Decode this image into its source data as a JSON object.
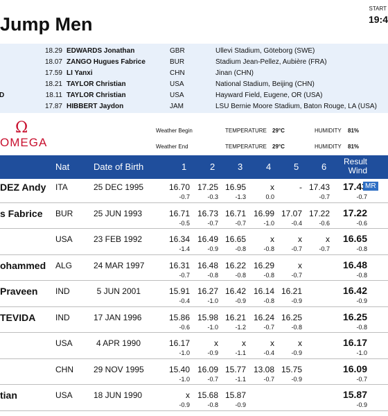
{
  "header": {
    "title": "Jump Men",
    "start_label": "START",
    "start_time": "19:4"
  },
  "records": [
    {
      "code": "",
      "mark": "18.29",
      "name": "EDWARDS Jonathan",
      "nat": "GBR",
      "venue": "Ullevi Stadium, Göteborg (SWE)"
    },
    {
      "code": "",
      "mark": "18.07",
      "name": "ZANGO Hugues Fabrice",
      "nat": "BUR",
      "venue": "Stadium Jean-Pellez, Aubière (FRA)"
    },
    {
      "code": "",
      "mark": "17.59",
      "name": "LI Yanxi",
      "nat": "CHN",
      "venue": "Jinan (CHN)"
    },
    {
      "code": "",
      "mark": "18.21",
      "name": "TAYLOR Christian",
      "nat": "USA",
      "venue": "National Stadium, Beijing (CHN)"
    },
    {
      "code": "D",
      "mark": "18.11",
      "name": "TAYLOR Christian",
      "nat": "USA",
      "venue": "Hayward Field, Eugene, OR (USA)"
    },
    {
      "code": "",
      "mark": "17.87",
      "name": "HIBBERT Jaydon",
      "nat": "JAM",
      "venue": "LSU Bernie Moore Stadium, Baton Rouge, LA (USA)"
    }
  ],
  "brand": {
    "symbol": "Ω",
    "word": "OMEGA"
  },
  "weather": {
    "begin_label": "Weather Begin",
    "end_label": "Weather End",
    "temperature_label": "TEMPERATURE",
    "humidity_label": "HUMIDITY",
    "begin_temp": "29°C",
    "begin_humidity": "81%",
    "end_temp": "29°C",
    "end_humidity": "81%"
  },
  "table": {
    "headers": {
      "nat": "Nat",
      "dob": "Date of Birth",
      "a1": "1",
      "a2": "2",
      "a3": "3",
      "a4": "4",
      "a5": "5",
      "a6": "6",
      "result": "Result",
      "wind": "Wind"
    },
    "rows": [
      {
        "name": "DEZ Andy",
        "nat": "ITA",
        "dob": "25 DEC 1995",
        "attempts": [
          "16.70",
          "17.25",
          "16.95",
          "x",
          "-",
          "17.43"
        ],
        "winds": [
          "-0.7",
          "-0.3",
          "-1.3",
          "0.0",
          "",
          "-0.7"
        ],
        "result": "17.43",
        "result_wind": "-0.7",
        "badge": "MR"
      },
      {
        "name": "s Fabrice",
        "nat": "BUR",
        "dob": "25 JUN 1993",
        "attempts": [
          "16.71",
          "16.73",
          "16.71",
          "16.99",
          "17.07",
          "17.22"
        ],
        "winds": [
          "-0.5",
          "-0.7",
          "-0.7",
          "-1.0",
          "-0.4",
          "-0.6"
        ],
        "result": "17.22",
        "result_wind": "-0.6",
        "badge": ""
      },
      {
        "name": "",
        "nat": "USA",
        "dob": "23 FEB 1992",
        "attempts": [
          "16.34",
          "16.49",
          "16.65",
          "x",
          "x",
          "x"
        ],
        "winds": [
          "-1.4",
          "-0.9",
          "-0.8",
          "-0.8",
          "-0.7",
          "-0.7"
        ],
        "result": "16.65",
        "result_wind": "-0.8",
        "badge": ""
      },
      {
        "name": "ohammed",
        "nat": "ALG",
        "dob": "24 MAR 1997",
        "attempts": [
          "16.31",
          "16.48",
          "16.22",
          "16.29",
          "x",
          ""
        ],
        "winds": [
          "-0.7",
          "-0.8",
          "-0.8",
          "-0.8",
          "-0.7",
          ""
        ],
        "result": "16.48",
        "result_wind": "-0.8",
        "badge": ""
      },
      {
        "name": "Praveen",
        "nat": "IND",
        "dob": "5 JUN 2001",
        "attempts": [
          "15.91",
          "16.27",
          "16.42",
          "16.14",
          "16.21",
          ""
        ],
        "winds": [
          "-0.4",
          "-1.0",
          "-0.9",
          "-0.8",
          "-0.9",
          ""
        ],
        "result": "16.42",
        "result_wind": "-0.9",
        "badge": ""
      },
      {
        "name": "TEVIDA",
        "nat": "IND",
        "dob": "17 JAN 1996",
        "attempts": [
          "15.86",
          "15.98",
          "16.21",
          "16.24",
          "16.25",
          ""
        ],
        "winds": [
          "-0.6",
          "-1.0",
          "-1.2",
          "-0.7",
          "-0.8",
          ""
        ],
        "result": "16.25",
        "result_wind": "-0.8",
        "badge": ""
      },
      {
        "name": "",
        "nat": "USA",
        "dob": "4 APR 1990",
        "attempts": [
          "16.17",
          "x",
          "x",
          "x",
          "x",
          ""
        ],
        "winds": [
          "-1.0",
          "-0.9",
          "-1.1",
          "-0.4",
          "-0.9",
          ""
        ],
        "result": "16.17",
        "result_wind": "-1.0",
        "badge": ""
      },
      {
        "name": "",
        "nat": "CHN",
        "dob": "29 NOV 1995",
        "attempts": [
          "15.40",
          "16.09",
          "15.77",
          "13.08",
          "15.75",
          ""
        ],
        "winds": [
          "-1.0",
          "-0.7",
          "-1.1",
          "-0.7",
          "-0.9",
          ""
        ],
        "result": "16.09",
        "result_wind": "-0.7",
        "badge": ""
      },
      {
        "name": "tian",
        "nat": "USA",
        "dob": "18 JUN 1990",
        "attempts": [
          "x",
          "15.68",
          "15.87",
          "",
          "",
          ""
        ],
        "winds": [
          "-0.9",
          "-0.8",
          "-0.9",
          "",
          "",
          ""
        ],
        "result": "15.87",
        "result_wind": "-0.9",
        "badge": ""
      }
    ]
  }
}
